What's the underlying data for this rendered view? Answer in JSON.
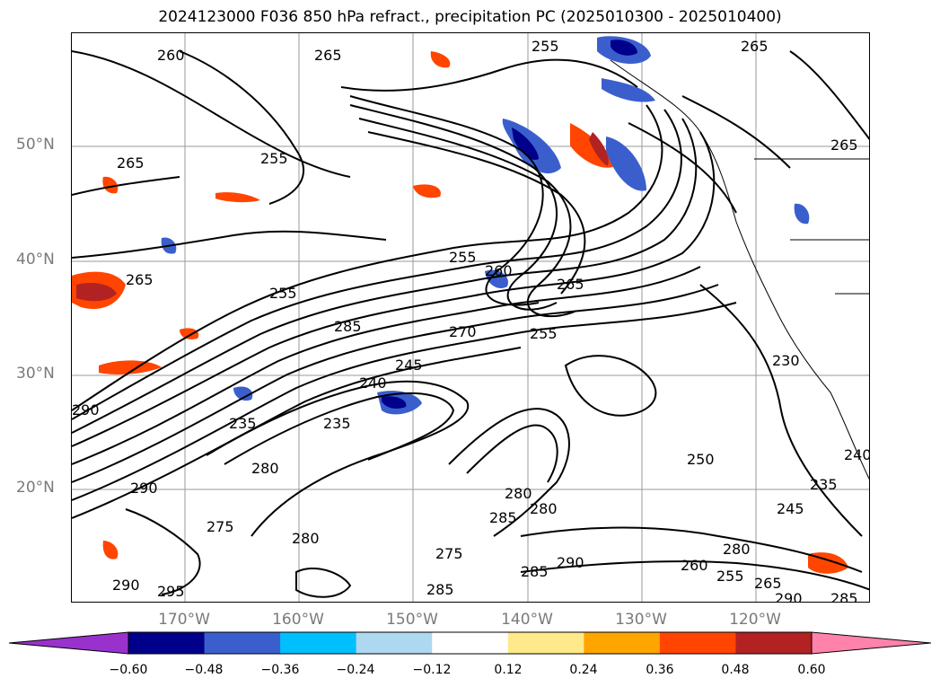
{
  "title": "2024123000 F036 850 hPa refract., precipitation PC (2025010300 - 2025010400)",
  "lat_labels": [
    "50°N",
    "40°N",
    "30°N",
    "20°N"
  ],
  "lon_labels": [
    "170°W",
    "160°W",
    "150°W",
    "140°W",
    "130°W",
    "120°W"
  ],
  "contour_labels": [
    "260",
    "265",
    "255",
    "265",
    "255",
    "265",
    "255",
    "260",
    "265",
    "255",
    "265",
    "270",
    "285",
    "255",
    "290",
    "240",
    "245",
    "230",
    "235",
    "235",
    "280",
    "280",
    "285",
    "280",
    "290",
    "275",
    "280",
    "290",
    "290",
    "295",
    "285",
    "275",
    "285",
    "260",
    "255",
    "265",
    "290",
    "245",
    "235",
    "240",
    "250",
    "285",
    "280",
    "265"
  ],
  "colorbar": {
    "ticks": [
      "−0.60",
      "−0.48",
      "−0.36",
      "−0.24",
      "−0.12",
      "0.12",
      "0.24",
      "0.36",
      "0.48",
      "0.60"
    ],
    "colors": [
      "#9932cc",
      "#00008b",
      "#3a5fcd",
      "#00bfff",
      "#add8f0",
      "#ffffff",
      "#ffe98a",
      "#ffa500",
      "#ff4500",
      "#b22222",
      "#ff82ab"
    ]
  },
  "colors": {
    "contour": "#000000",
    "grid": "#999999",
    "axis_label": "#7a7a7a"
  }
}
